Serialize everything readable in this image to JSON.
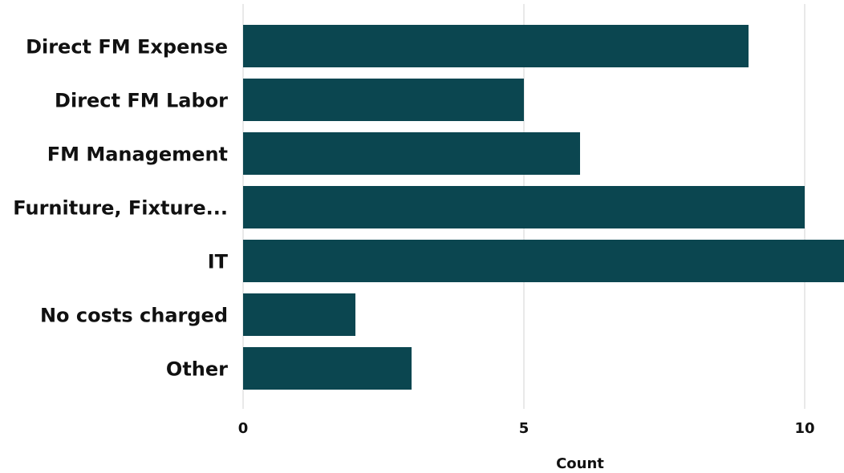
{
  "chart_data": {
    "type": "bar",
    "orientation": "horizontal",
    "categories": [
      "Direct FM Expense",
      "Direct FM Labor",
      "FM Management",
      "Furniture, Fixture...",
      "IT",
      "No costs charged",
      "Other"
    ],
    "values": [
      9,
      5,
      6,
      10,
      11,
      2,
      3
    ],
    "xlabel": "Count",
    "ylabel": "",
    "xlim": [
      0,
      10.7
    ],
    "xticks": [
      "0",
      "5",
      "10"
    ],
    "grid": true,
    "bar_color": "#0b4650"
  }
}
